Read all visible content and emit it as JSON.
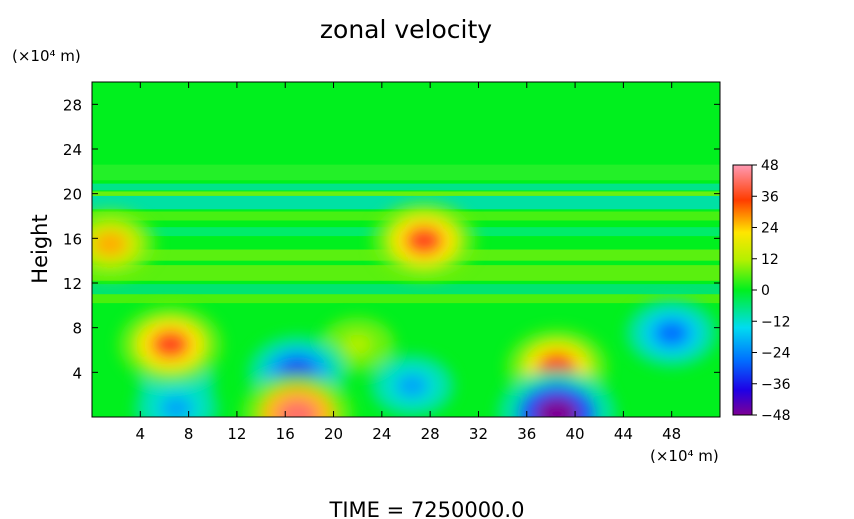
{
  "chart_data": {
    "type": "heatmap",
    "title": "zonal velocity",
    "ylabel": "Height",
    "x_unit": "(×10⁴ m)",
    "y_unit": "(×10⁴ m)",
    "xlim": [
      0,
      52
    ],
    "ylim": [
      0,
      30
    ],
    "x_ticks": [
      4,
      8,
      12,
      16,
      20,
      24,
      28,
      32,
      36,
      40,
      44,
      48
    ],
    "x_tick_labels": [
      "4",
      "8",
      "12",
      "16",
      "20",
      "24",
      "28",
      "32",
      "36",
      "40",
      "44",
      "48"
    ],
    "y_ticks": [
      4,
      8,
      12,
      16,
      20,
      24,
      28
    ],
    "y_tick_labels": [
      "4",
      "8",
      "12",
      "16",
      "20",
      "24",
      "28"
    ],
    "colorbar": {
      "min": -48,
      "max": 48,
      "ticks": [
        48,
        36,
        24,
        12,
        0,
        -12,
        -24,
        -36,
        -48
      ],
      "tick_labels": [
        "48",
        "36",
        "24",
        "12",
        "0",
        "−12",
        "−24",
        "−36",
        "−48"
      ]
    },
    "grid": false,
    "footer": "TIME = 7250000.0",
    "features": [
      {
        "x": 6.5,
        "y": 6.5,
        "value": 36
      },
      {
        "x": 17,
        "y": 4,
        "value": -32
      },
      {
        "x": 17,
        "y": 0.2,
        "value": 42
      },
      {
        "x": 38.5,
        "y": 4.5,
        "value": 34
      },
      {
        "x": 38.5,
        "y": 0.3,
        "value": -48
      },
      {
        "x": 48,
        "y": 7.5,
        "value": -26
      },
      {
        "x": 7,
        "y": 0.8,
        "value": -20
      },
      {
        "x": 7,
        "y": 3.2,
        "value": -14
      },
      {
        "x": 27.5,
        "y": 15.8,
        "value": 36
      },
      {
        "x": 1.5,
        "y": 15.5,
        "value": 26
      },
      {
        "x": 22,
        "y": 6.5,
        "value": 12
      },
      {
        "x": 26.5,
        "y": 2.8,
        "value": -20
      }
    ]
  }
}
